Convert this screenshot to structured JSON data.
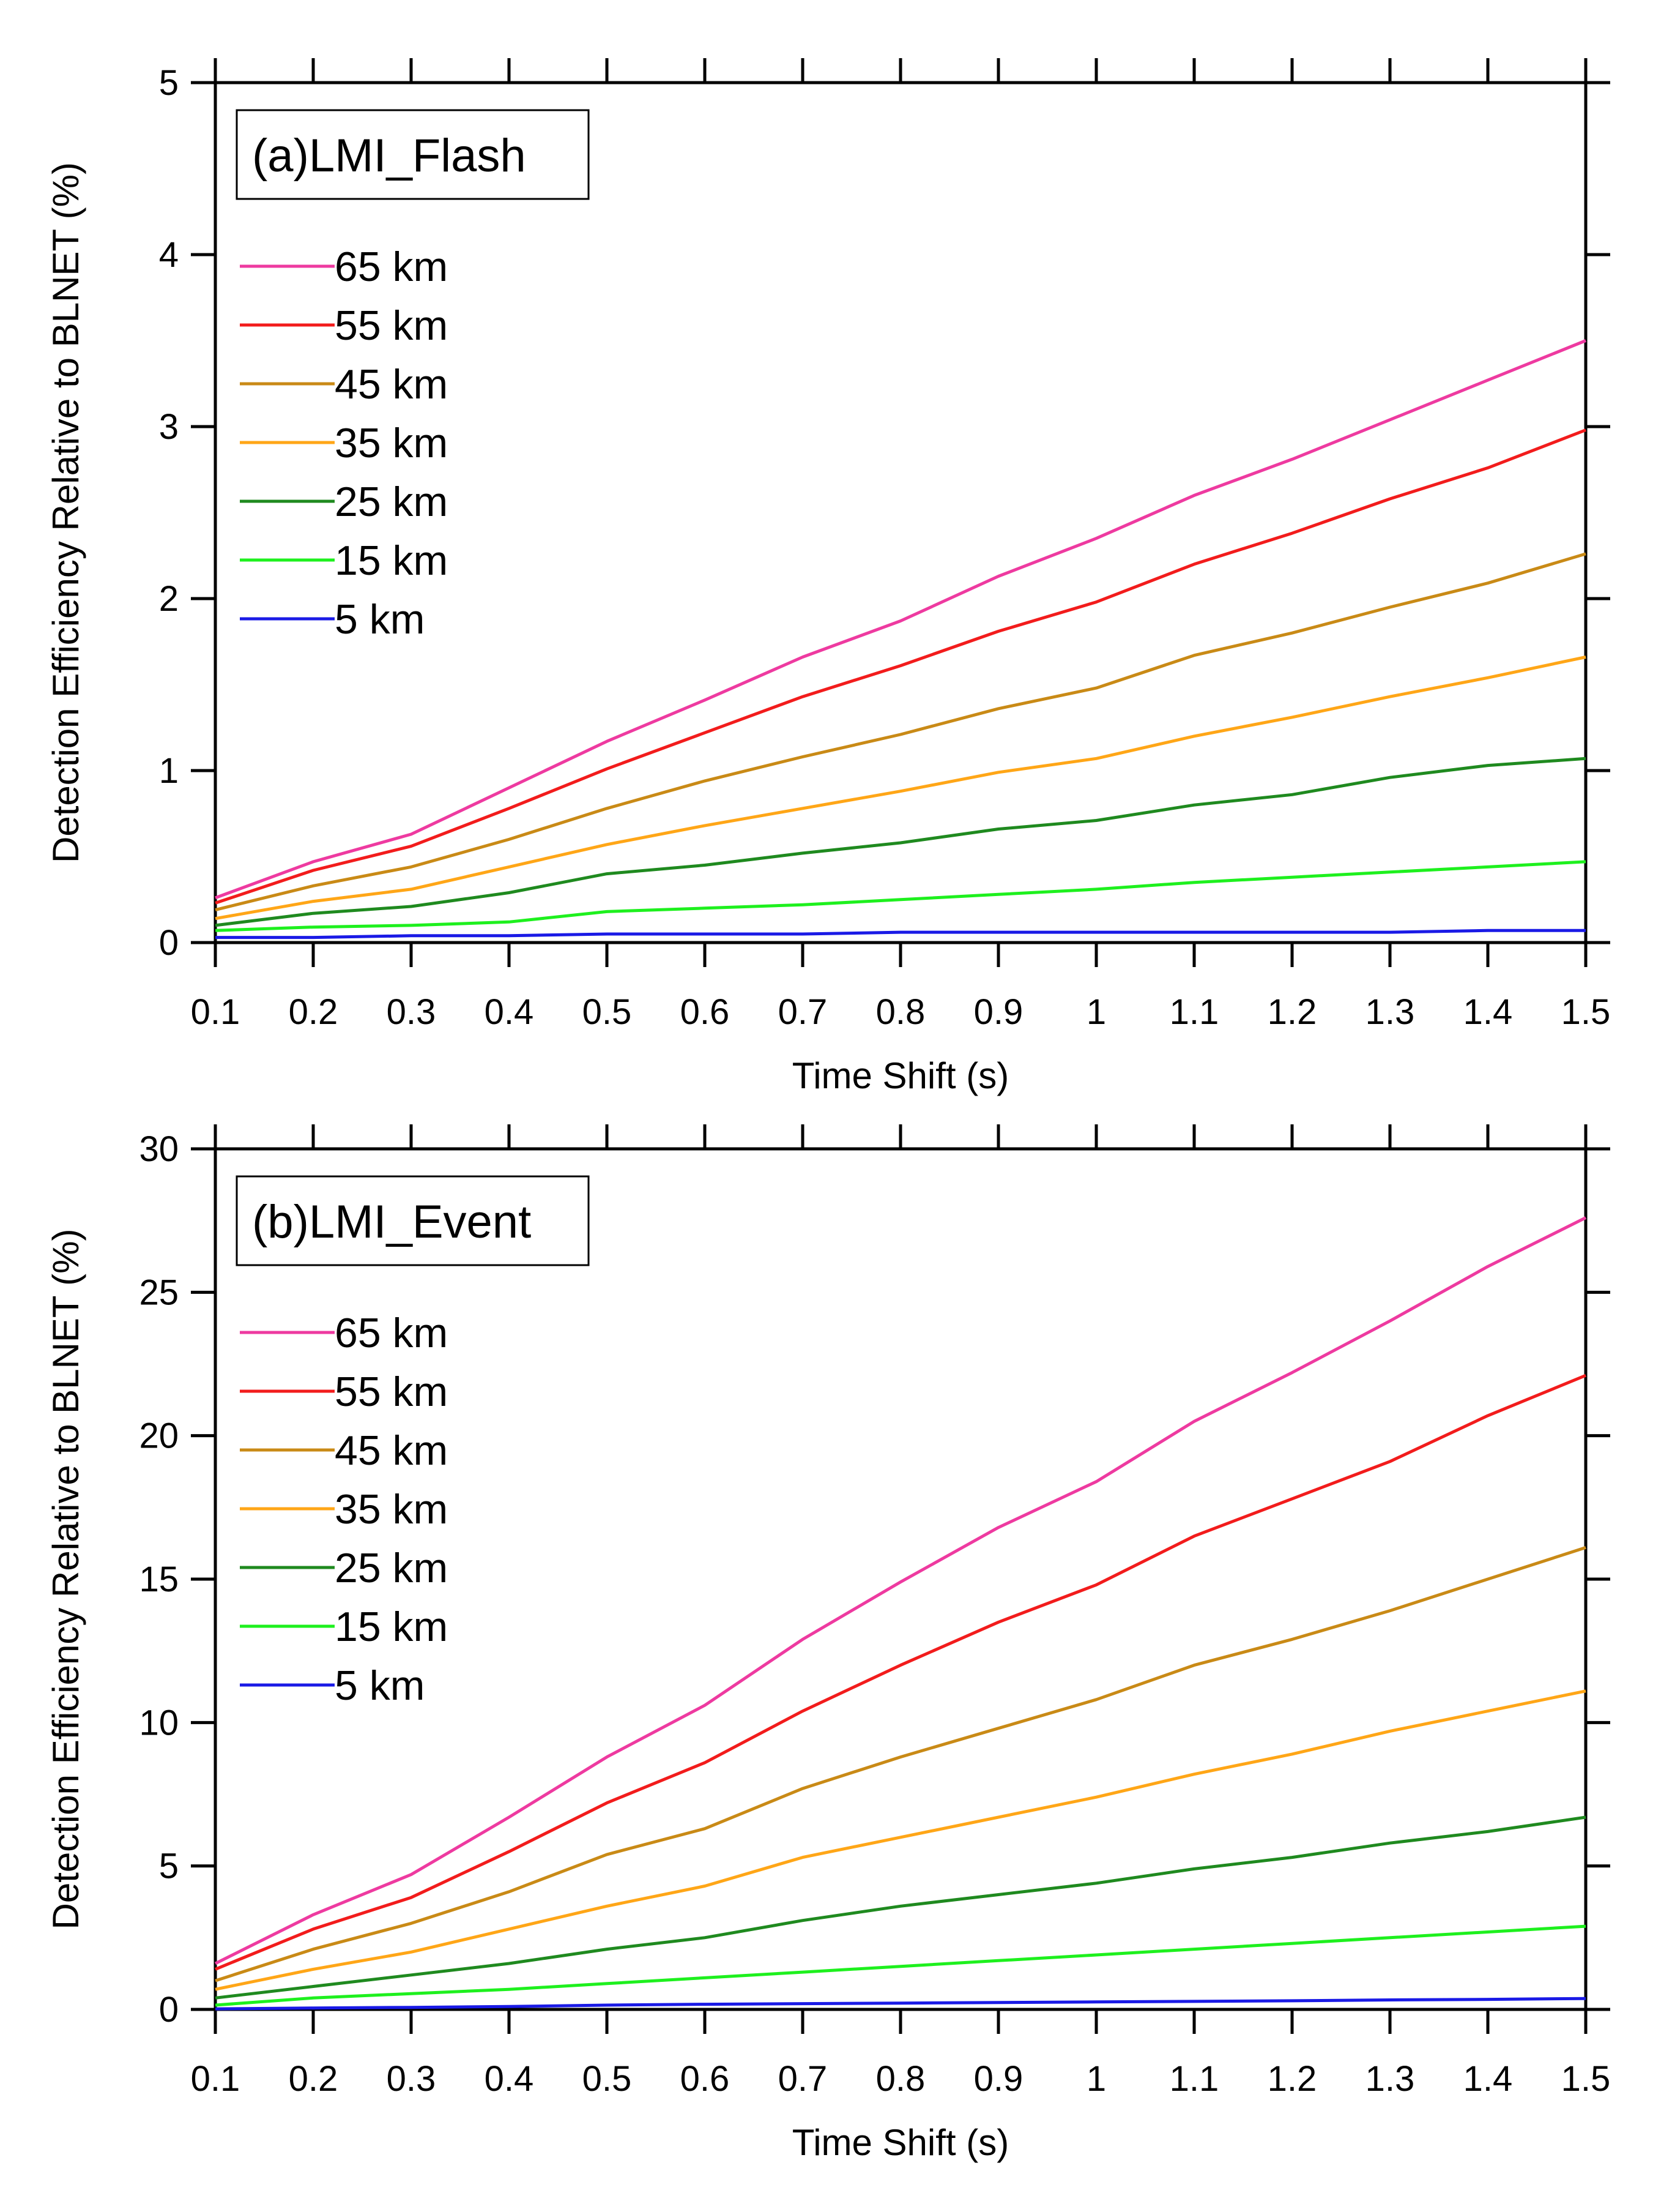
{
  "chart_data": [
    {
      "type": "line",
      "title": "(a)LMI_Flash",
      "xlabel": "Time Shift (s)",
      "ylabel": "Detection Efficiency Relative to BLNET (%)",
      "x": [
        0.1,
        0.2,
        0.3,
        0.4,
        0.5,
        0.6,
        0.7,
        0.8,
        0.9,
        1.0,
        1.1,
        1.2,
        1.3,
        1.4,
        1.5
      ],
      "x_tick_labels": [
        "0.1",
        "0.2",
        "0.3",
        "0.4",
        "0.5",
        "0.6",
        "0.7",
        "0.8",
        "0.9",
        "1",
        "1.1",
        "1.2",
        "1.3",
        "1.4",
        "1.5"
      ],
      "xlim": [
        0.1,
        1.5
      ],
      "ylim": [
        0,
        5
      ],
      "y_ticks": [
        0,
        1,
        2,
        3,
        4,
        5
      ],
      "y_tick_labels": [
        "0",
        "1",
        "2",
        "3",
        "4",
        "5"
      ],
      "grid": false,
      "legend_position": "upper-left",
      "series": [
        {
          "name": "65 km",
          "color": "#ee3aa0",
          "values": [
            0.26,
            0.47,
            0.63,
            0.9,
            1.17,
            1.41,
            1.66,
            1.87,
            2.13,
            2.35,
            2.6,
            2.81,
            3.04,
            3.27,
            3.5
          ]
        },
        {
          "name": "55 km",
          "color": "#f21c1c",
          "values": [
            0.23,
            0.42,
            0.56,
            0.78,
            1.01,
            1.22,
            1.43,
            1.61,
            1.81,
            1.98,
            2.2,
            2.38,
            2.58,
            2.76,
            2.98
          ]
        },
        {
          "name": "45 km",
          "color": "#c98a16",
          "values": [
            0.19,
            0.33,
            0.44,
            0.6,
            0.78,
            0.94,
            1.08,
            1.21,
            1.36,
            1.48,
            1.67,
            1.8,
            1.95,
            2.09,
            2.26
          ]
        },
        {
          "name": "35 km",
          "color": "#ffa617",
          "values": [
            0.14,
            0.24,
            0.31,
            0.44,
            0.57,
            0.68,
            0.78,
            0.88,
            0.99,
            1.07,
            1.2,
            1.31,
            1.43,
            1.54,
            1.66
          ]
        },
        {
          "name": "25 km",
          "color": "#1f8a1f",
          "values": [
            0.1,
            0.17,
            0.21,
            0.29,
            0.4,
            0.45,
            0.52,
            0.58,
            0.66,
            0.71,
            0.8,
            0.86,
            0.96,
            1.03,
            1.07
          ]
        },
        {
          "name": "15 km",
          "color": "#1ef01e",
          "values": [
            0.07,
            0.09,
            0.1,
            0.12,
            0.18,
            0.2,
            0.22,
            0.25,
            0.28,
            0.31,
            0.35,
            0.38,
            0.41,
            0.44,
            0.47
          ]
        },
        {
          "name": "5 km",
          "color": "#1a1ae6",
          "values": [
            0.03,
            0.03,
            0.04,
            0.04,
            0.05,
            0.05,
            0.05,
            0.06,
            0.06,
            0.06,
            0.06,
            0.06,
            0.06,
            0.07,
            0.07
          ]
        }
      ]
    },
    {
      "type": "line",
      "title": "(b)LMI_Event",
      "xlabel": "Time Shift (s)",
      "ylabel": "Detection Efficiency Relative to BLNET (%)",
      "x": [
        0.1,
        0.2,
        0.3,
        0.4,
        0.5,
        0.6,
        0.7,
        0.8,
        0.9,
        1.0,
        1.1,
        1.2,
        1.3,
        1.4,
        1.5
      ],
      "x_tick_labels": [
        "0.1",
        "0.2",
        "0.3",
        "0.4",
        "0.5",
        "0.6",
        "0.7",
        "0.8",
        "0.9",
        "1",
        "1.1",
        "1.2",
        "1.3",
        "1.4",
        "1.5"
      ],
      "xlim": [
        0.1,
        1.5
      ],
      "ylim": [
        0,
        30
      ],
      "y_ticks": [
        0,
        5,
        10,
        15,
        20,
        25,
        30
      ],
      "y_tick_labels": [
        "0",
        "5",
        "10",
        "15",
        "20",
        "25",
        "30"
      ],
      "grid": false,
      "legend_position": "upper-left",
      "series": [
        {
          "name": "65 km",
          "color": "#ee3aa0",
          "values": [
            1.6,
            3.3,
            4.7,
            6.7,
            8.8,
            10.6,
            12.9,
            14.9,
            16.8,
            18.4,
            20.5,
            22.2,
            24.0,
            25.9,
            27.6
          ]
        },
        {
          "name": "55 km",
          "color": "#f21c1c",
          "values": [
            1.4,
            2.8,
            3.9,
            5.5,
            7.2,
            8.6,
            10.4,
            12.0,
            13.5,
            14.8,
            16.5,
            17.8,
            19.1,
            20.7,
            22.1
          ]
        },
        {
          "name": "45 km",
          "color": "#c98a16",
          "values": [
            1.0,
            2.1,
            3.0,
            4.1,
            5.4,
            6.3,
            7.7,
            8.8,
            9.8,
            10.8,
            12.0,
            12.9,
            13.9,
            15.0,
            16.1
          ]
        },
        {
          "name": "35 km",
          "color": "#ffa617",
          "values": [
            0.7,
            1.4,
            2.0,
            2.8,
            3.6,
            4.3,
            5.3,
            6.0,
            6.7,
            7.4,
            8.2,
            8.9,
            9.7,
            10.4,
            11.1
          ]
        },
        {
          "name": "25 km",
          "color": "#1f8a1f",
          "values": [
            0.4,
            0.8,
            1.2,
            1.6,
            2.1,
            2.5,
            3.1,
            3.6,
            4.0,
            4.4,
            4.9,
            5.3,
            5.8,
            6.2,
            6.7
          ]
        },
        {
          "name": "15 km",
          "color": "#1ef01e",
          "values": [
            0.15,
            0.4,
            0.55,
            0.7,
            0.9,
            1.1,
            1.3,
            1.5,
            1.7,
            1.9,
            2.1,
            2.3,
            2.5,
            2.7,
            2.9
          ]
        },
        {
          "name": "5 km",
          "color": "#1a1ae6",
          "values": [
            0.02,
            0.05,
            0.07,
            0.1,
            0.15,
            0.18,
            0.2,
            0.22,
            0.24,
            0.26,
            0.28,
            0.3,
            0.33,
            0.35,
            0.38
          ]
        }
      ]
    }
  ]
}
